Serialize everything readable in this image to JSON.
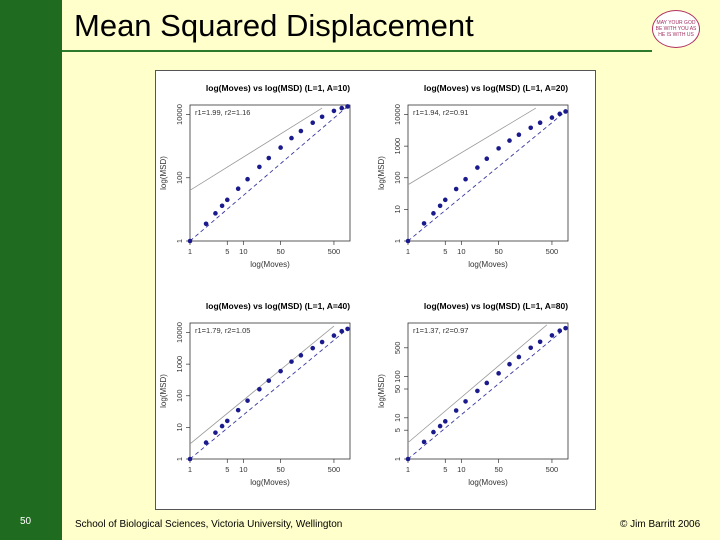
{
  "slide": {
    "title": "Mean Squared Displacement",
    "number": "50",
    "footer_left": "School of Biological Sciences, Victoria University, Wellington",
    "footer_right": "© Jim Barritt 2006",
    "logo_text": "MAY YOUR GOD BE WITH YOU AS HE IS WITH US"
  },
  "colors": {
    "background": "#ffffcc",
    "left_band": "#1f6b1f",
    "points": "#1a1a8c",
    "fit_line": "#3a3aa0",
    "reference_line": "#9a9a9a"
  },
  "chart_data": [
    {
      "type": "scatter",
      "title": "log(Moves) vs log(MSD) (L=1, A=10)",
      "xlabel": "log(Moves)",
      "ylabel": "log(MSD)",
      "annotation": "r1=1.99, r2=1.16",
      "x_scale": "log",
      "y_scale": "log",
      "xlim": [
        1,
        1000
      ],
      "ylim": [
        1,
        20000
      ],
      "x_ticks": [
        "1",
        "5",
        "10",
        "50",
        "500"
      ],
      "x_tick_values": [
        1,
        5,
        10,
        50,
        500
      ],
      "y_ticks": [
        "1",
        "100",
        "10000"
      ],
      "y_tick_values": [
        1,
        100,
        10000
      ],
      "series": [
        {
          "name": "observed",
          "x": [
            1,
            2,
            3,
            4,
            5,
            8,
            12,
            20,
            30,
            50,
            80,
            120,
            200,
            300,
            500,
            700,
            900
          ],
          "y": [
            1,
            3.5,
            7.5,
            13,
            20,
            45,
            90,
            220,
            420,
            900,
            1800,
            3000,
            5500,
            8500,
            13000,
            16000,
            18000
          ]
        },
        {
          "name": "fit",
          "x": [
            1,
            900
          ],
          "y": [
            1,
            18000
          ]
        },
        {
          "name": "reference",
          "x": [
            1,
            300
          ],
          "y": [
            40,
            16000
          ]
        }
      ]
    },
    {
      "type": "scatter",
      "title": "log(Moves) vs log(MSD) (L=1, A=20)",
      "xlabel": "log(Moves)",
      "ylabel": "log(MSD)",
      "annotation": "r1=1.94, r2=0.91",
      "x_scale": "log",
      "y_scale": "log",
      "xlim": [
        1,
        1000
      ],
      "ylim": [
        1,
        20000
      ],
      "x_ticks": [
        "1",
        "5",
        "10",
        "50",
        "500"
      ],
      "x_tick_values": [
        1,
        5,
        10,
        50,
        500
      ],
      "y_ticks": [
        "1",
        "10",
        "100",
        "1000",
        "10000"
      ],
      "y_tick_values": [
        1,
        10,
        100,
        1000,
        10000
      ],
      "series": [
        {
          "name": "observed",
          "x": [
            1,
            2,
            3,
            4,
            5,
            8,
            12,
            20,
            30,
            50,
            80,
            120,
            200,
            300,
            500,
            700,
            900
          ],
          "y": [
            1,
            3.6,
            7.5,
            13,
            20,
            44,
            90,
            210,
            400,
            850,
            1500,
            2300,
            3800,
            5500,
            8000,
            10500,
            12500
          ]
        },
        {
          "name": "fit",
          "x": [
            1,
            900
          ],
          "y": [
            1,
            12500
          ]
        },
        {
          "name": "reference",
          "x": [
            1,
            250
          ],
          "y": [
            60,
            16000
          ]
        }
      ]
    },
    {
      "type": "scatter",
      "title": "log(Moves) vs log(MSD) (L=1, A=40)",
      "xlabel": "log(Moves)",
      "ylabel": "log(MSD)",
      "annotation": "r1=1.79, r2=1.05",
      "x_scale": "log",
      "y_scale": "log",
      "xlim": [
        1,
        1000
      ],
      "ylim": [
        1,
        20000
      ],
      "x_ticks": [
        "1",
        "5",
        "10",
        "50",
        "500"
      ],
      "x_tick_values": [
        1,
        5,
        10,
        50,
        500
      ],
      "y_ticks": [
        "1",
        "10",
        "100",
        "1000",
        "10000"
      ],
      "y_tick_values": [
        1,
        10,
        100,
        1000,
        10000
      ],
      "series": [
        {
          "name": "observed",
          "x": [
            1,
            2,
            3,
            4,
            5,
            8,
            12,
            20,
            30,
            50,
            80,
            120,
            200,
            300,
            500,
            700,
            900
          ],
          "y": [
            1,
            3.3,
            6.8,
            11,
            16,
            35,
            70,
            160,
            300,
            600,
            1200,
            1900,
            3200,
            5000,
            8000,
            11000,
            13000
          ]
        },
        {
          "name": "fit",
          "x": [
            1,
            900
          ],
          "y": [
            1,
            13000
          ]
        },
        {
          "name": "reference",
          "x": [
            1,
            500
          ],
          "y": [
            3,
            16000
          ]
        }
      ]
    },
    {
      "type": "scatter",
      "title": "log(Moves) vs log(MSD) (L=1, A=80)",
      "xlabel": "log(Moves)",
      "ylabel": "log(MSD)",
      "annotation": "r1=1.37, r2=0.97",
      "x_scale": "log",
      "y_scale": "log",
      "xlim": [
        1,
        1000
      ],
      "ylim": [
        1,
        2000
      ],
      "x_ticks": [
        "1",
        "5",
        "10",
        "50",
        "500"
      ],
      "x_tick_values": [
        1,
        5,
        10,
        50,
        500
      ],
      "y_ticks": [
        "1",
        "5",
        "10",
        "50",
        "100",
        "500"
      ],
      "y_tick_values": [
        1,
        5,
        10,
        50,
        100,
        500
      ],
      "series": [
        {
          "name": "observed",
          "x": [
            1,
            2,
            3,
            4,
            5,
            8,
            12,
            20,
            30,
            50,
            80,
            120,
            200,
            300,
            500,
            700,
            900
          ],
          "y": [
            1,
            2.6,
            4.5,
            6.3,
            8.2,
            15,
            25,
            45,
            70,
            120,
            200,
            300,
            500,
            700,
            1000,
            1300,
            1500
          ]
        },
        {
          "name": "fit",
          "x": [
            1,
            900
          ],
          "y": [
            1,
            1500
          ]
        },
        {
          "name": "reference",
          "x": [
            1,
            400
          ],
          "y": [
            2.5,
            1800
          ]
        }
      ]
    }
  ]
}
